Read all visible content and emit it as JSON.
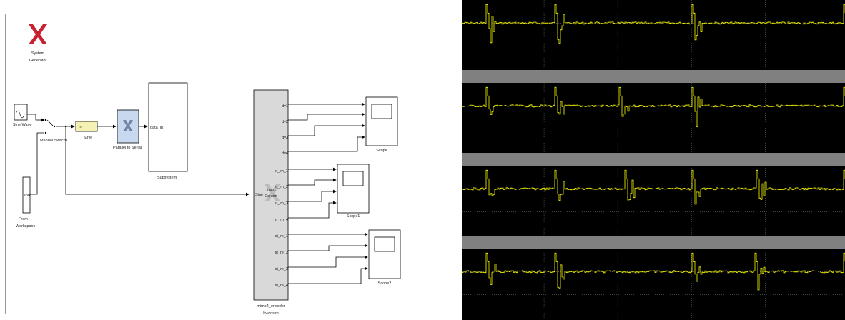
{
  "diagram": {
    "logo": {
      "icon": "xilinx-logo-icon",
      "color": "#c8202f",
      "line1": "System",
      "line2": "Generator"
    },
    "blocks": {
      "sine_wave": "Sine Wave",
      "manual_switch": "Manual Switch1",
      "from_workspace_port": "sou",
      "from_workspace_line1": "From",
      "from_workspace_line2": "Workspace",
      "gateway_port": "In",
      "gateway_name": "Sine",
      "p2s_name": "Parallel to Serial",
      "subsystem_port": "data_in",
      "subsystem_name": "Subsystem",
      "hw_input_port": "Sine",
      "hw_center_line1": "JTAG",
      "hw_center_line2": "Co-sim",
      "hw_name_line1": "mimo4_encoder",
      "hw_name_line2": "hwcosim",
      "scope": "Scope",
      "scope1": "Scope1",
      "scope2": "Scope2"
    },
    "ports_a": [
      "dv1",
      "dv2",
      "dv3",
      "dv4"
    ],
    "ports_b": [
      "st_im_1",
      "st_im_2",
      "st_im_3",
      "st_im_4"
    ],
    "ports_c": [
      "st_re_1",
      "st_re_2",
      "st_re_3",
      "st_re_4"
    ]
  },
  "scope": {
    "background": "#000000",
    "trace_color": "#ffff00",
    "separator_color": "#808080",
    "panels": 4
  }
}
